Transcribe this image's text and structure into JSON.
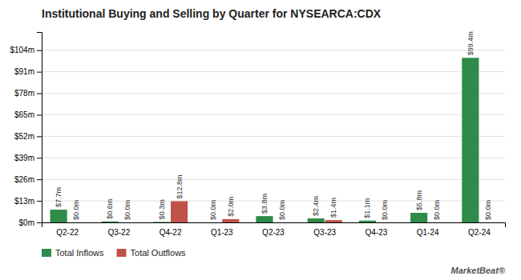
{
  "chart_data": {
    "type": "bar",
    "title": "Institutional Buying and Selling by Quarter for NYSEARCA:CDX",
    "annotations": [
      "MarketBeat®"
    ],
    "categories": [
      "Q2-22",
      "Q3-22",
      "Q4-22",
      "Q1-23",
      "Q2-23",
      "Q3-23",
      "Q4-23",
      "Q1-24",
      "Q2-24"
    ],
    "series": [
      {
        "name": "Total Inflows",
        "color": "#2e8b4a",
        "values": [
          7.7,
          0.6,
          0.3,
          0.0,
          3.8,
          2.4,
          1.1,
          5.8,
          99.4
        ],
        "value_labels": [
          "$7.7m",
          "$0.6m",
          "$0.3m",
          "$0.0m",
          "$3.8m",
          "$2.4m",
          "$1.1m",
          "$5.8m",
          "$99.4m"
        ]
      },
      {
        "name": "Total Outflows",
        "color": "#c0524a",
        "values": [
          0.0,
          0.0,
          12.8,
          2.0,
          0.0,
          1.4,
          0.0,
          0.0,
          0.0
        ],
        "value_labels": [
          "$0.0m",
          "$0.0m",
          "$12.8m",
          "$2.0m",
          "$0.0m",
          "$1.4m",
          "$0.0m",
          "$0.0m",
          "$0.0m"
        ]
      }
    ],
    "ylim": [
      0,
      115
    ],
    "yticks": [
      {
        "value": 0,
        "label": "$0m"
      },
      {
        "value": 13,
        "label": "$13m"
      },
      {
        "value": 26,
        "label": "$26m"
      },
      {
        "value": 39,
        "label": "$39m"
      },
      {
        "value": 52,
        "label": "$52m"
      },
      {
        "value": 65,
        "label": "$65m"
      },
      {
        "value": 78,
        "label": "$78m"
      },
      {
        "value": 91,
        "label": "$91m"
      },
      {
        "value": 104,
        "label": "$104m"
      }
    ],
    "grid": true,
    "legend": "lower left",
    "data_labels": true
  }
}
